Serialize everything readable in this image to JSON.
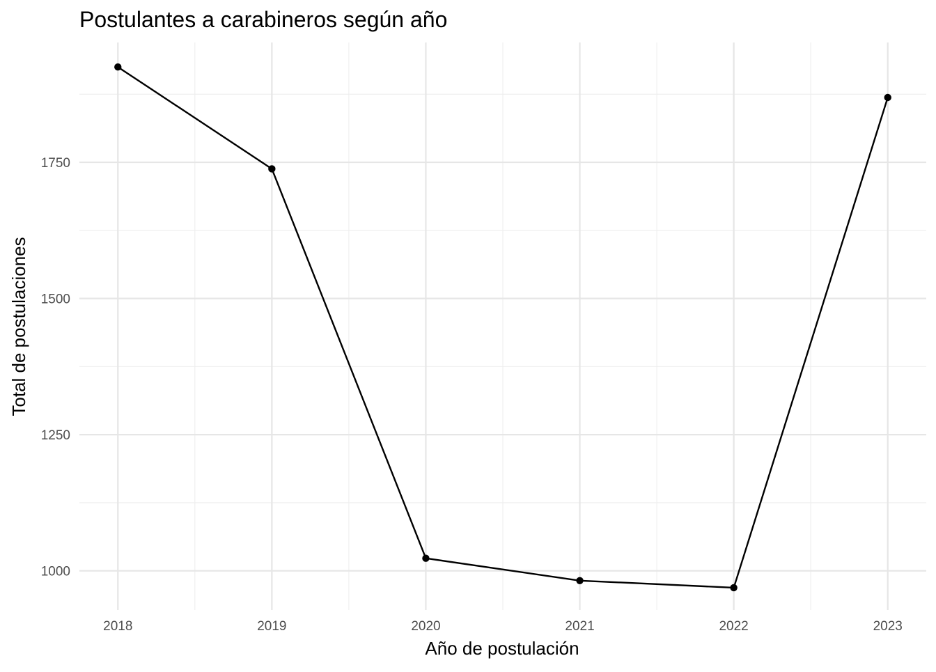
{
  "chart_data": {
    "type": "line",
    "title": "Postulantes a carabineros según año",
    "xlabel": "Año de postulación",
    "ylabel": "Total de postulaciones",
    "x": [
      2018,
      2019,
      2020,
      2021,
      2022,
      2023
    ],
    "x_tick_labels": [
      "2018",
      "2019",
      "2020",
      "2021",
      "2022",
      "2023"
    ],
    "values": [
      1925,
      1738,
      1023,
      982,
      969,
      1869
    ],
    "y_ticks": [
      1000,
      1250,
      1500,
      1750
    ],
    "y_tick_labels": [
      "1000",
      "1250",
      "1500",
      "1750"
    ],
    "ylim": [
      928,
      1970
    ],
    "xlim": [
      2017.75,
      2023.25
    ],
    "grid": true,
    "colors": {
      "line": "#000000",
      "point": "#000000",
      "grid_major": "#e6e6e6",
      "grid_minor": "#eeeeee"
    }
  }
}
